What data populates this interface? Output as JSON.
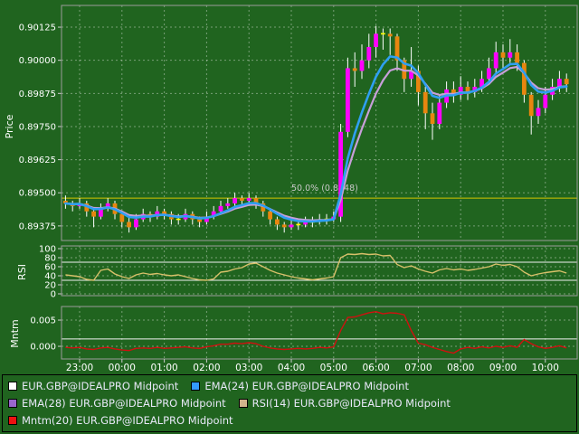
{
  "colors": {
    "background": "#20641f",
    "grid_dash": "rgba(205,218,205,0.5)",
    "panel_border": "#9b9b9b",
    "tick_mark": "#cccccc",
    "candle_up": "#ff00ff",
    "candle_down": "#e8860f",
    "candle_doji": "#ffff00",
    "wick": "#ffffff",
    "ema24": "#2f9ff2",
    "ema28": "#c79fd9",
    "rsi_line": "#d8c06a",
    "mntm_line": "#d01010",
    "level_line": "#f0f0f0",
    "fib_line": "#d4c300",
    "fib_label": "#c9c9c9"
  },
  "axes": {
    "price_title": "Price",
    "rsi_title": "RSI",
    "momentum_title": "Mntm"
  },
  "time_axis": {
    "labels": [
      "23:00",
      "00:00",
      "01:00",
      "02:00",
      "03:00",
      "04:00",
      "05:00",
      "06:00",
      "07:00",
      "08:00",
      "09:00",
      "10:00"
    ]
  },
  "chart_data": [
    {
      "type": "candlestick",
      "name": "EUR.GBP@IDEALPRO Midpoint",
      "panel": "price",
      "ylim": [
        0.8932,
        0.90207
      ],
      "yticks": [
        {
          "v": 0.90125,
          "label": "0.90125"
        },
        {
          "v": 0.9,
          "label": "0.90000"
        },
        {
          "v": 0.89875,
          "label": "0.89875"
        },
        {
          "v": 0.8975,
          "label": "0.89750"
        },
        {
          "v": 0.89625,
          "label": "0.89625"
        },
        {
          "v": 0.895,
          "label": "0.89500"
        },
        {
          "v": 0.89375,
          "label": "0.89375"
        }
      ],
      "level_lines": [
        {
          "v": 0.8948,
          "label": "50.0% (0.8948)"
        }
      ],
      "times": [
        "22:40",
        "22:50",
        "23:00",
        "23:10",
        "23:20",
        "23:30",
        "23:40",
        "23:50",
        "00:00",
        "00:10",
        "00:20",
        "00:30",
        "00:40",
        "00:50",
        "01:00",
        "01:10",
        "01:20",
        "01:30",
        "01:40",
        "01:50",
        "02:00",
        "02:10",
        "02:20",
        "02:30",
        "02:40",
        "02:50",
        "03:00",
        "03:10",
        "03:20",
        "03:30",
        "03:40",
        "03:50",
        "04:00",
        "04:10",
        "04:20",
        "04:30",
        "04:40",
        "04:50",
        "05:00",
        "05:10",
        "05:20",
        "05:30",
        "05:40",
        "05:50",
        "06:00",
        "06:10",
        "06:20",
        "06:30",
        "06:40",
        "06:50",
        "07:00",
        "07:10",
        "07:20",
        "07:30",
        "07:40",
        "07:50",
        "08:00",
        "08:10",
        "08:20",
        "08:30",
        "08:40",
        "08:50",
        "09:00",
        "09:10",
        "09:20",
        "09:30",
        "09:40",
        "09:50",
        "10:00",
        "10:10",
        "10:20",
        "10:30"
      ],
      "ohlc": [
        [
          0.8947,
          0.8949,
          0.8944,
          0.8946
        ],
        [
          0.8946,
          0.8947,
          0.8943,
          0.8945
        ],
        [
          0.8945,
          0.8948,
          0.8944,
          0.8946
        ],
        [
          0.8946,
          0.8947,
          0.8941,
          0.8943
        ],
        [
          0.8943,
          0.8944,
          0.8937,
          0.8941
        ],
        [
          0.8941,
          0.8946,
          0.894,
          0.8944
        ],
        [
          0.8944,
          0.8948,
          0.8943,
          0.8946
        ],
        [
          0.8946,
          0.8947,
          0.894,
          0.8942
        ],
        [
          0.8942,
          0.8943,
          0.8937,
          0.8939
        ],
        [
          0.8939,
          0.8941,
          0.8935,
          0.8937
        ],
        [
          0.8937,
          0.8942,
          0.8936,
          0.894
        ],
        [
          0.894,
          0.8944,
          0.8939,
          0.8942
        ],
        [
          0.8942,
          0.8943,
          0.8939,
          0.8941
        ],
        [
          0.8941,
          0.8945,
          0.894,
          0.8943
        ],
        [
          0.8943,
          0.8944,
          0.894,
          0.8942
        ],
        [
          0.8942,
          0.8943,
          0.8938,
          0.894
        ],
        [
          0.894,
          0.8942,
          0.8938,
          0.894
        ],
        [
          0.894,
          0.8944,
          0.8939,
          0.8942
        ],
        [
          0.8942,
          0.8943,
          0.8938,
          0.894
        ],
        [
          0.894,
          0.8941,
          0.8937,
          0.8939
        ],
        [
          0.8939,
          0.8943,
          0.8938,
          0.8941
        ],
        [
          0.8941,
          0.8945,
          0.894,
          0.8943
        ],
        [
          0.8943,
          0.8947,
          0.8942,
          0.8945
        ],
        [
          0.8945,
          0.8948,
          0.8944,
          0.8946
        ],
        [
          0.8946,
          0.895,
          0.8945,
          0.8948
        ],
        [
          0.8948,
          0.8949,
          0.8945,
          0.8947
        ],
        [
          0.8947,
          0.895,
          0.8946,
          0.8948
        ],
        [
          0.8948,
          0.8949,
          0.8944,
          0.8946
        ],
        [
          0.8946,
          0.8947,
          0.8941,
          0.8943
        ],
        [
          0.8943,
          0.8944,
          0.8938,
          0.894
        ],
        [
          0.894,
          0.8941,
          0.8936,
          0.8938
        ],
        [
          0.8938,
          0.8939,
          0.8935,
          0.8937
        ],
        [
          0.8937,
          0.894,
          0.8936,
          0.8938
        ],
        [
          0.8938,
          0.894,
          0.8936,
          0.8938
        ],
        [
          0.8938,
          0.8941,
          0.8937,
          0.8939
        ],
        [
          0.8939,
          0.8941,
          0.8937,
          0.8939
        ],
        [
          0.8939,
          0.8942,
          0.8938,
          0.894
        ],
        [
          0.894,
          0.8942,
          0.8938,
          0.894
        ],
        [
          0.894,
          0.8943,
          0.8939,
          0.8941
        ],
        [
          0.8941,
          0.8976,
          0.8939,
          0.8973
        ],
        [
          0.8973,
          0.9001,
          0.8971,
          0.8997
        ],
        [
          0.8997,
          0.9003,
          0.899,
          0.8996
        ],
        [
          0.8996,
          0.9006,
          0.8993,
          0.9
        ],
        [
          0.9,
          0.901,
          0.8997,
          0.9005
        ],
        [
          0.9005,
          0.9013,
          0.9001,
          0.901
        ],
        [
          0.901,
          0.9012,
          0.9004,
          0.901
        ],
        [
          0.901,
          0.9012,
          0.9002,
          0.9009
        ],
        [
          0.9009,
          0.901,
          0.8996,
          0.9
        ],
        [
          0.9,
          0.9001,
          0.8988,
          0.8993
        ],
        [
          0.8993,
          0.9005,
          0.899,
          0.8996
        ],
        [
          0.8996,
          0.8998,
          0.8983,
          0.8988
        ],
        [
          0.8988,
          0.899,
          0.8974,
          0.898
        ],
        [
          0.898,
          0.8984,
          0.897,
          0.8976
        ],
        [
          0.8976,
          0.8987,
          0.8974,
          0.8984
        ],
        [
          0.8984,
          0.8992,
          0.8982,
          0.8989
        ],
        [
          0.8989,
          0.8992,
          0.8984,
          0.8987
        ],
        [
          0.8987,
          0.8994,
          0.8985,
          0.899
        ],
        [
          0.899,
          0.8992,
          0.8985,
          0.8988
        ],
        [
          0.8988,
          0.8993,
          0.8986,
          0.899
        ],
        [
          0.899,
          0.8996,
          0.8988,
          0.8993
        ],
        [
          0.8993,
          0.9001,
          0.8991,
          0.8997
        ],
        [
          0.8997,
          0.9007,
          0.8995,
          0.9003
        ],
        [
          0.9003,
          0.9006,
          0.8997,
          0.9001
        ],
        [
          0.9001,
          0.9008,
          0.8999,
          0.9003
        ],
        [
          0.9003,
          0.9006,
          0.8996,
          0.8999
        ],
        [
          0.8999,
          0.9,
          0.8984,
          0.8987
        ],
        [
          0.8987,
          0.8988,
          0.8972,
          0.8979
        ],
        [
          0.8979,
          0.8985,
          0.8976,
          0.8982
        ],
        [
          0.8982,
          0.899,
          0.898,
          0.8987
        ],
        [
          0.8987,
          0.8993,
          0.8985,
          0.899
        ],
        [
          0.899,
          0.8996,
          0.8988,
          0.8993
        ],
        [
          0.8993,
          0.8995,
          0.8988,
          0.8991
        ]
      ],
      "overlays": [
        {
          "label": "EMA(24)",
          "period": 6,
          "color_key": "ema24",
          "width": 2.6
        },
        {
          "label": "EMA(28)",
          "period": 8,
          "color_key": "ema28",
          "width": 2.2
        }
      ]
    },
    {
      "type": "line",
      "name": "RSI(14) EUR.GBP@IDEALPRO Midpoint",
      "panel": "rsi",
      "color_key": "rsi_line",
      "ylim": [
        -4,
        106
      ],
      "yticks": [
        {
          "v": 100,
          "label": "100"
        },
        {
          "v": 80,
          "label": "80"
        },
        {
          "v": 60,
          "label": "60"
        },
        {
          "v": 40,
          "label": "40"
        },
        {
          "v": 20,
          "label": "20"
        },
        {
          "v": 0,
          "label": "0"
        }
      ],
      "levels": [
        70,
        30
      ],
      "values": [
        42,
        40,
        38,
        32,
        30,
        52,
        55,
        44,
        38,
        34,
        42,
        46,
        43,
        45,
        42,
        40,
        42,
        38,
        34,
        31,
        30,
        33,
        48,
        50,
        55,
        58,
        66,
        68,
        60,
        52,
        46,
        42,
        38,
        35,
        33,
        31,
        33,
        35,
        38,
        80,
        88,
        87,
        89,
        87,
        88,
        84,
        85,
        65,
        58,
        62,
        55,
        50,
        46,
        53,
        56,
        53,
        55,
        52,
        54,
        57,
        60,
        66,
        63,
        65,
        60,
        48,
        40,
        44,
        47,
        49,
        51,
        46
      ]
    },
    {
      "type": "line",
      "name": "Mntm(20) EUR.GBP@IDEALPRO Midpoint",
      "panel": "momentum",
      "color_key": "mntm_line",
      "ylim": [
        -0.00241,
        0.00759
      ],
      "yticks": [
        {
          "v": 0.005,
          "label": "0.005"
        },
        {
          "v": 0.0,
          "label": "0.000"
        }
      ],
      "levels": [
        0.0014
      ],
      "values": [
        -0.0002,
        -0.0003,
        -0.0002,
        -0.0005,
        -0.0006,
        -0.0003,
        -0.0002,
        -0.0005,
        -0.0007,
        -0.0008,
        -0.0004,
        -0.0003,
        -0.0004,
        -0.0002,
        -0.0004,
        -0.0003,
        -0.0002,
        -0.0001,
        -0.0003,
        -0.0004,
        -0.0001,
        0.0001,
        0.0004,
        0.0004,
        0.0006,
        0.0005,
        0.0007,
        0.0005,
        0.0,
        -0.0003,
        -0.0005,
        -0.0006,
        -0.0005,
        -0.0004,
        -0.0005,
        -0.0004,
        -0.0002,
        -0.0003,
        -0.0001,
        0.003,
        0.0055,
        0.0056,
        0.006,
        0.0064,
        0.0066,
        0.0062,
        0.0064,
        0.0063,
        0.006,
        0.003,
        0.0006,
        0.0003,
        -0.0002,
        -0.0006,
        -0.001,
        -0.0013,
        -0.0005,
        -0.0002,
        -0.0004,
        -0.0001,
        -0.0003,
        0.0,
        -0.0002,
        0.0001,
        -0.0002,
        0.0013,
        0.0005,
        -0.0001,
        -0.0004,
        -0.0002,
        0.0001,
        -0.0003
      ]
    }
  ],
  "legend": {
    "items": [
      {
        "label": "EUR.GBP@IDEALPRO Midpoint",
        "color": "#ffffff"
      },
      {
        "label": "EMA(24) EUR.GBP@IDEALPRO Midpoint",
        "color": "#3399ff"
      },
      {
        "label": "EMA(28) EUR.GBP@IDEALPRO Midpoint",
        "color": "#9966cc"
      },
      {
        "label": "RSI(14) EUR.GBP@IDEALPRO Midpoint",
        "color": "#d2b48c"
      },
      {
        "label": "Mntm(20) EUR.GBP@IDEALPRO Midpoint",
        "color": "#ee1111"
      }
    ]
  }
}
